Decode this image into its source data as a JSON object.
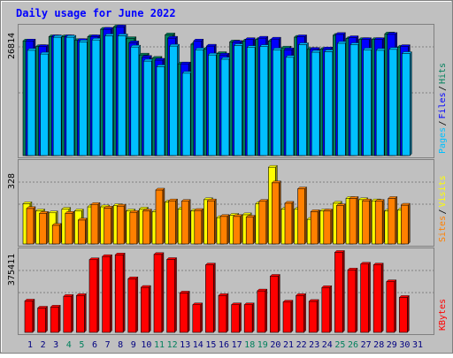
{
  "title": "Daily usage for June 2022",
  "colors": {
    "background": "#c0c0c0",
    "title": "#0000ff",
    "hits": "#00805c",
    "files": "#0000ff",
    "pages": "#00c0ff",
    "visits": "#ffff00",
    "sites": "#ff8000",
    "kbytes": "#ff0000",
    "weekend_day": "#00805c",
    "weekday": "#000080"
  },
  "chart_data": [
    {
      "type": "bar",
      "panel": "hits-files-pages",
      "y_max_label": "26814",
      "ylim": [
        0,
        26814
      ],
      "legend": [
        "Pages",
        "Files",
        "Hits"
      ],
      "categories": [
        "1",
        "2",
        "3",
        "4",
        "5",
        "6",
        "7",
        "8",
        "9",
        "10",
        "11",
        "12",
        "13",
        "14",
        "15",
        "16",
        "17",
        "18",
        "19",
        "20",
        "21",
        "22",
        "23",
        "24",
        "25",
        "26",
        "27",
        "28",
        "29",
        "30",
        "31"
      ],
      "weekend_days": [
        "4",
        "5",
        "11",
        "12",
        "18",
        "19",
        "25",
        "26"
      ],
      "series": [
        {
          "name": "Hits",
          "values": [
            24500,
            23300,
            25400,
            25400,
            24600,
            25400,
            27000,
            27500,
            25000,
            21500,
            20800,
            25800,
            19600,
            23800,
            22800,
            21800,
            24300,
            24500,
            24800,
            24500,
            23000,
            25300,
            22700,
            22700,
            25700,
            25000,
            24800,
            24800,
            26000,
            23200,
            0
          ]
        },
        {
          "name": "Files",
          "values": [
            24500,
            23300,
            25400,
            25400,
            24600,
            25400,
            27000,
            27500,
            24100,
            21000,
            20400,
            25100,
            19600,
            24500,
            23400,
            21500,
            24200,
            24800,
            25100,
            24900,
            22600,
            25400,
            22700,
            22800,
            25900,
            25200,
            24800,
            24800,
            25900,
            23300,
            0
          ]
        },
        {
          "name": "Pages",
          "values": [
            22500,
            21700,
            25300,
            25300,
            24300,
            24700,
            25600,
            25600,
            23200,
            20200,
            19000,
            23400,
            17600,
            22600,
            21500,
            20600,
            23500,
            23100,
            23300,
            22600,
            21000,
            23700,
            22100,
            22200,
            24000,
            23700,
            22600,
            22500,
            22700,
            21800,
            0
          ]
        }
      ]
    },
    {
      "type": "bar",
      "panel": "visits-sites",
      "y_max_label": "328",
      "ylim": [
        0,
        328
      ],
      "legend": [
        "Sites",
        "Visits"
      ],
      "categories": [
        "1",
        "2",
        "3",
        "4",
        "5",
        "6",
        "7",
        "8",
        "9",
        "10",
        "11",
        "12",
        "13",
        "14",
        "15",
        "16",
        "17",
        "18",
        "19",
        "20",
        "21",
        "22",
        "23",
        "24",
        "25",
        "26",
        "27",
        "28",
        "29",
        "30",
        "31"
      ],
      "series": [
        {
          "name": "Visits",
          "values": [
            168,
            138,
            130,
            145,
            138,
            155,
            155,
            160,
            138,
            146,
            134,
            175,
            146,
            138,
            185,
            110,
            120,
            122,
            168,
            320,
            145,
            145,
            103,
            138,
            170,
            190,
            185,
            180,
            138,
            142,
            0
          ]
        },
        {
          "name": "Sites",
          "values": [
            148,
            128,
            78,
            128,
            100,
            165,
            150,
            158,
            132,
            138,
            225,
            180,
            178,
            140,
            180,
            115,
            115,
            112,
            178,
            255,
            170,
            230,
            135,
            138,
            160,
            190,
            180,
            178,
            190,
            162,
            0
          ]
        }
      ]
    },
    {
      "type": "bar",
      "panel": "kbytes",
      "y_max_label": "375411",
      "ylim": [
        0,
        375411
      ],
      "legend": [
        "KBytes"
      ],
      "categories": [
        "1",
        "2",
        "3",
        "4",
        "5",
        "6",
        "7",
        "8",
        "9",
        "10",
        "11",
        "12",
        "13",
        "14",
        "15",
        "16",
        "17",
        "18",
        "19",
        "20",
        "21",
        "22",
        "23",
        "24",
        "25",
        "26",
        "27",
        "28",
        "29",
        "30",
        "31"
      ],
      "series": [
        {
          "name": "KBytes",
          "values": [
            150000,
            116000,
            121000,
            172000,
            176000,
            347000,
            362000,
            370000,
            256000,
            215000,
            372000,
            348000,
            188000,
            132000,
            322000,
            176000,
            132000,
            132000,
            198000,
            268000,
            145000,
            176000,
            148000,
            214000,
            382000,
            298000,
            326000,
            322000,
            242000,
            167000,
            0
          ]
        }
      ]
    }
  ]
}
